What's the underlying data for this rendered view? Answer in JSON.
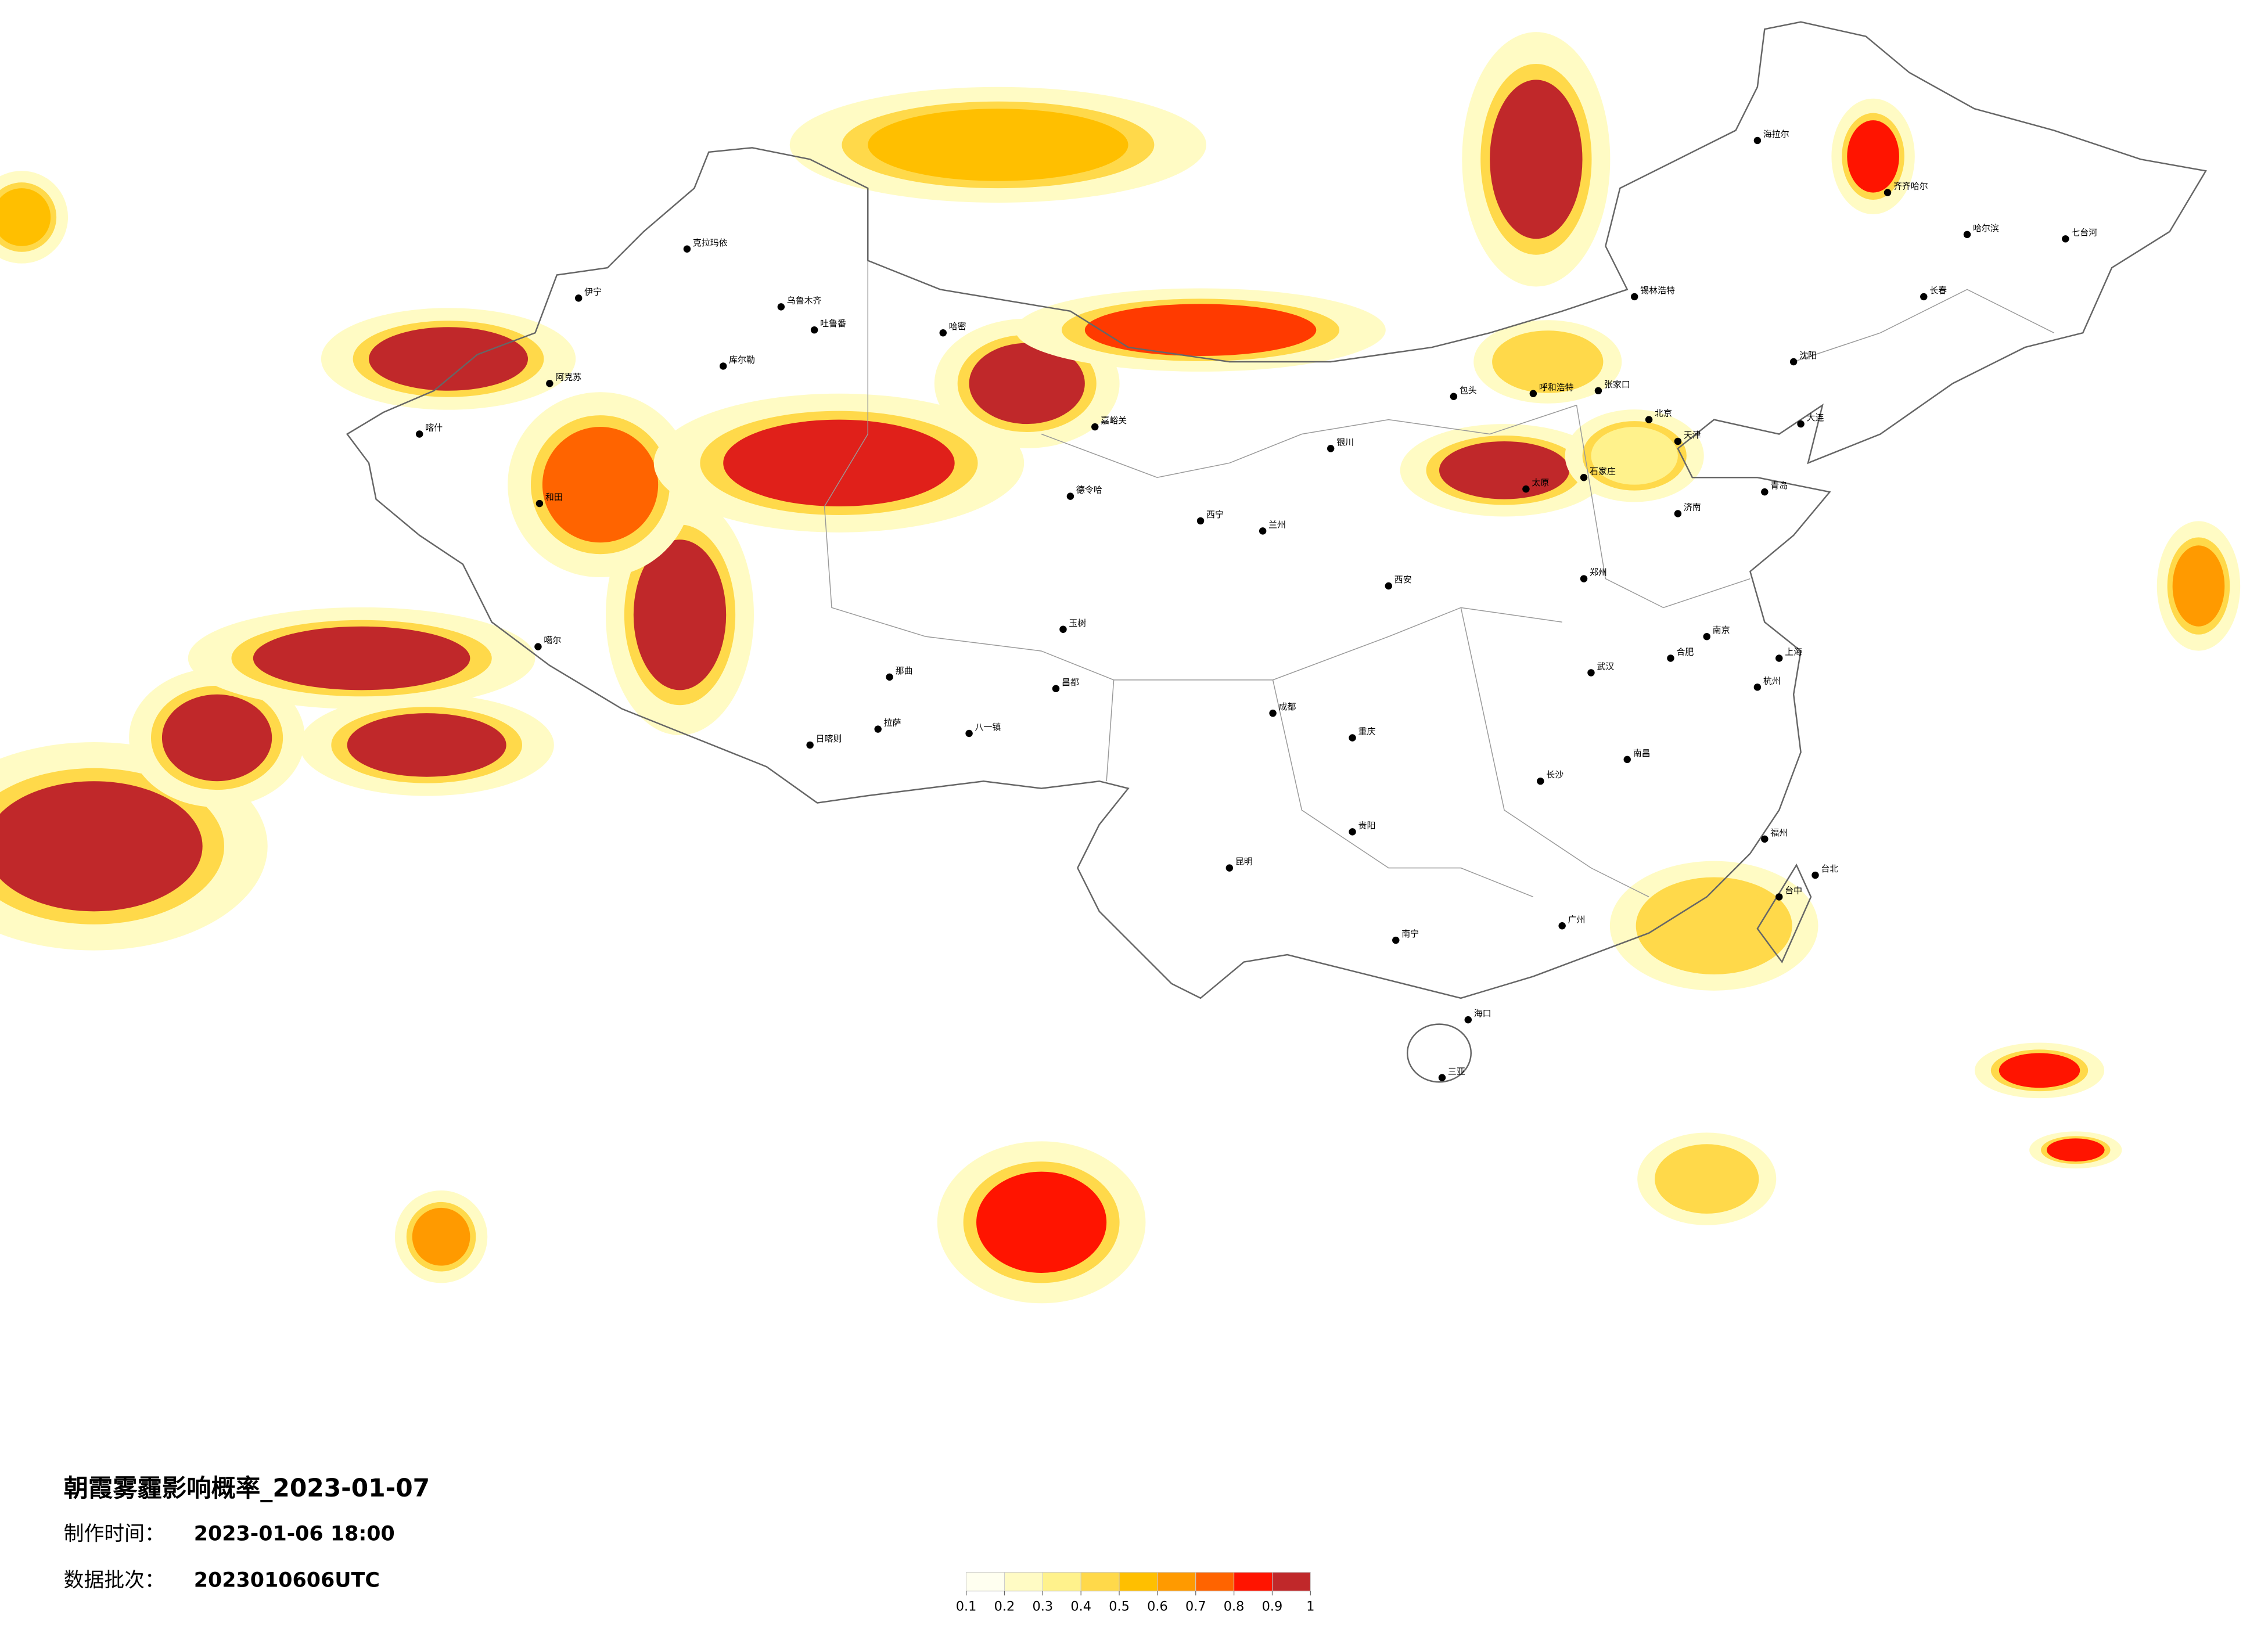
{
  "title": "朝霞雾霾影响概率_2023-01-07",
  "made_label": "制作时间：",
  "made_value": "2023-01-06 18:00",
  "batch_label": "数据批次：",
  "batch_value": "2023010606UTC",
  "legend": {
    "colors": [
      "#fffff0",
      "#fffbc4",
      "#fff28c",
      "#ffd94a",
      "#ffbf00",
      "#ff9a00",
      "#ff6400",
      "#ff1400",
      "#c0282a"
    ],
    "ticks": [
      0.1,
      0.2,
      0.3,
      0.4,
      0.5,
      0.6,
      0.7,
      0.8,
      0.9,
      1
    ]
  },
  "cities": [
    "克拉玛依",
    "乌鲁木齐",
    "吐鲁番",
    "哈密",
    "库尔勒",
    "阿克苏",
    "喀什",
    "和田",
    "伊宁",
    "德令哈",
    "嘉峪关",
    "拉萨",
    "日喀则",
    "八一镇",
    "昌都",
    "噶尔",
    "那曲",
    "玉树",
    "西宁",
    "兰州",
    "银川",
    "呼和浩特",
    "包头",
    "北京",
    "天津",
    "石家庄",
    "太原",
    "济南",
    "郑州",
    "西安",
    "成都",
    "重庆",
    "贵阳",
    "昆明",
    "南宁",
    "广州",
    "长沙",
    "武汉",
    "南昌",
    "合肥",
    "南京",
    "上海",
    "杭州",
    "福州",
    "台北",
    "台中",
    "海口",
    "三亚",
    "沈阳",
    "长春",
    "哈尔滨",
    "齐齐哈尔",
    "海拉尔",
    "大连",
    "青岛",
    "锡林浩特",
    "张家口",
    "七台河"
  ]
}
